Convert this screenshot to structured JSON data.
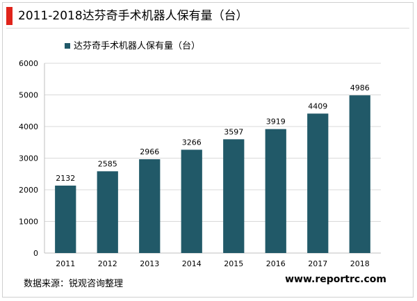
{
  "header": {
    "title": "2011-2018达芬奇手术机器人保有量（台）",
    "accent_color": "#e0241b"
  },
  "footer": {
    "source": "数据来源：锐观咨询整理",
    "site": "www.reportrc.com"
  },
  "chart_data": {
    "type": "bar",
    "title": "",
    "xlabel": "",
    "ylabel": "",
    "categories": [
      "2011",
      "2012",
      "2013",
      "2014",
      "2015",
      "2016",
      "2017",
      "2018"
    ],
    "series": [
      {
        "name": "达芬奇手术机器人保有量（台）",
        "values": [
          2132,
          2585,
          2966,
          3266,
          3597,
          3919,
          4409,
          4986
        ],
        "color": "#215968"
      }
    ],
    "ylim": [
      0,
      6000
    ],
    "yticks": [
      0,
      1000,
      2000,
      3000,
      4000,
      5000,
      6000
    ],
    "grid": true,
    "legend": "top-left",
    "data_labels": true
  }
}
